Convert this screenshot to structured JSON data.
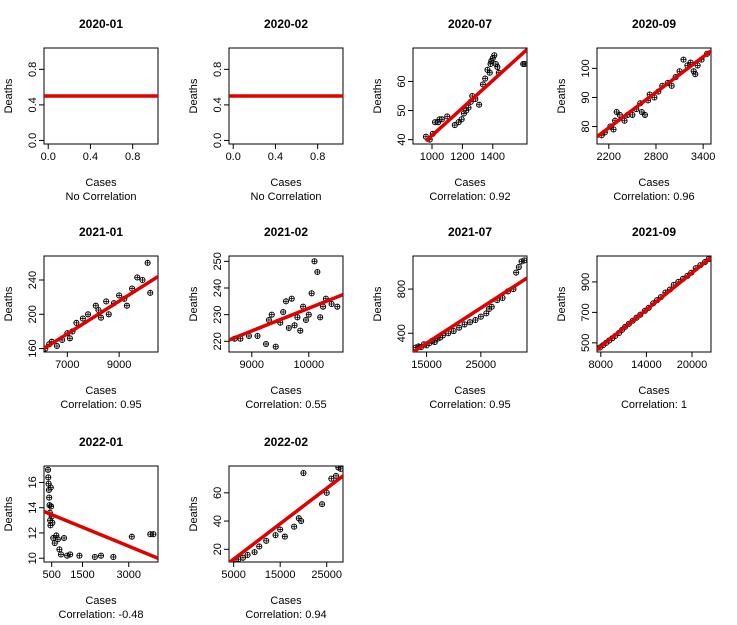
{
  "figure": {
    "background": "#ffffff",
    "point_color": "#000000",
    "line_color": "#e00000"
  },
  "chart_data": [
    {
      "type": "scatter",
      "title": "2020-01",
      "xlabel": "Cases",
      "ylabel": "Deaths",
      "subtitle": "No Correlation",
      "xlim": [
        -0.04,
        1.04
      ],
      "ylim": [
        -0.04,
        1.04
      ],
      "xticks": [
        0.0,
        0.4,
        0.8
      ],
      "xticklabels": [
        "0.0",
        "0.4",
        "0.8"
      ],
      "yticks": [
        0.0,
        0.4,
        0.8
      ],
      "yticklabels": [
        "0.0",
        "0.4",
        "0.8"
      ],
      "x": [],
      "y": [],
      "fit": {
        "x": [
          -0.04,
          1.04
        ],
        "y": [
          0.5,
          0.5
        ]
      }
    },
    {
      "type": "scatter",
      "title": "2020-02",
      "xlabel": "Cases",
      "ylabel": "Deaths",
      "subtitle": "No Correlation",
      "xlim": [
        -0.04,
        1.04
      ],
      "ylim": [
        -0.04,
        1.04
      ],
      "xticks": [
        0.0,
        0.4,
        0.8
      ],
      "xticklabels": [
        "0.0",
        "0.4",
        "0.8"
      ],
      "yticks": [
        0.0,
        0.4,
        0.8
      ],
      "yticklabels": [
        "0.0",
        "0.4",
        "0.8"
      ],
      "x": [],
      "y": [],
      "fit": {
        "x": [
          -0.04,
          1.04
        ],
        "y": [
          0.5,
          0.5
        ]
      }
    },
    {
      "type": "scatter",
      "title": "2020-07",
      "xlabel": "Cases",
      "ylabel": "Deaths",
      "subtitle": "Correlation:  0.92",
      "xlim": [
        875,
        1625
      ],
      "ylim": [
        38.5,
        71.5
      ],
      "xticks": [
        1000,
        1200,
        1400
      ],
      "xticklabels": [
        "1000",
        "1200",
        "1400"
      ],
      "yticks": [
        40,
        50,
        60
      ],
      "yticklabels": [
        "40",
        "50",
        "60"
      ],
      "x": [
        960,
        985,
        1005,
        1020,
        1040,
        1050,
        1065,
        1100,
        1150,
        1175,
        1195,
        1210,
        1225,
        1240,
        1255,
        1265,
        1285,
        1310,
        1335,
        1350,
        1365,
        1380,
        1385,
        1390,
        1400,
        1410,
        1420,
        1430,
        1440,
        1600,
        1610
      ],
      "y": [
        41,
        40,
        42,
        46,
        46,
        47,
        47,
        48,
        45,
        46,
        47,
        49,
        50,
        51,
        53,
        55,
        54,
        52,
        59,
        61,
        64,
        63,
        66,
        67,
        68,
        69,
        66,
        65,
        63,
        66,
        66
      ],
      "fit": {
        "x": [
          960,
          1625
        ],
        "y": [
          39.5,
          71.0
        ]
      }
    },
    {
      "type": "scatter",
      "title": "2020-09",
      "xlabel": "Cases",
      "ylabel": "Deaths",
      "subtitle": "Correlation:  0.96",
      "xlim": [
        2050,
        3500
      ],
      "ylim": [
        74,
        107
      ],
      "xticks": [
        2200,
        2800,
        3400
      ],
      "xticklabels": [
        "2200",
        "2800",
        "3400"
      ],
      "yticks": [
        80,
        90,
        100
      ],
      "yticklabels": [
        "80",
        "90",
        "100"
      ],
      "x": [
        2110,
        2150,
        2220,
        2260,
        2280,
        2300,
        2340,
        2400,
        2440,
        2500,
        2550,
        2600,
        2620,
        2660,
        2700,
        2720,
        2780,
        2830,
        2880,
        2950,
        3000,
        3050,
        3100,
        3150,
        3200,
        3240,
        3280,
        3300,
        3330,
        3380,
        3450
      ],
      "y": [
        77,
        78,
        80,
        79,
        82,
        85,
        84,
        82,
        84,
        84,
        86,
        88,
        85,
        84,
        89,
        91,
        90,
        92,
        94,
        95,
        94,
        97,
        99,
        103,
        101,
        102,
        99,
        98,
        101,
        103,
        105
      ],
      "fit": {
        "x": [
          2050,
          3500
        ],
        "y": [
          76.5,
          106.0
        ]
      }
    },
    {
      "type": "scatter",
      "title": "2021-01",
      "xlabel": "Cases",
      "ylabel": "Deaths",
      "subtitle": "Correlation:  0.95",
      "xlim": [
        6100,
        10500
      ],
      "ylim": [
        156,
        268
      ],
      "xticks": [
        7000,
        9000
      ],
      "xticklabels": [
        "7000",
        "9000"
      ],
      "yticks": [
        160,
        200,
        240
      ],
      "yticklabels": [
        "160",
        "200",
        "240"
      ],
      "x": [
        6150,
        6300,
        6400,
        6600,
        6800,
        7000,
        7100,
        7200,
        7350,
        7600,
        7800,
        8100,
        8200,
        8300,
        8500,
        8600,
        8800,
        9000,
        9200,
        9300,
        9500,
        9700,
        9900,
        10100,
        10200
      ],
      "y": [
        160,
        165,
        168,
        163,
        170,
        178,
        172,
        180,
        190,
        195,
        200,
        210,
        205,
        196,
        215,
        200,
        213,
        222,
        218,
        210,
        230,
        243,
        240,
        260,
        225
      ],
      "fit": {
        "x": [
          6100,
          10500
        ],
        "y": [
          160.0,
          244.0
        ]
      }
    },
    {
      "type": "scatter",
      "title": "2021-02",
      "xlabel": "Cases",
      "ylabel": "Deaths",
      "subtitle": "Correlation:  0.55",
      "xlim": [
        8600,
        10600
      ],
      "ylim": [
        216,
        252
      ],
      "xticks": [
        9000,
        10000
      ],
      "xticklabels": [
        "9000",
        "10000"
      ],
      "yticks": [
        220,
        230,
        240,
        250
      ],
      "yticklabels": [
        "220",
        "230",
        "240",
        "250"
      ],
      "x": [
        8700,
        8800,
        8950,
        9100,
        9250,
        9300,
        9350,
        9420,
        9500,
        9550,
        9600,
        9650,
        9700,
        9750,
        9800,
        9850,
        9900,
        9950,
        10000,
        10050,
        10100,
        10150,
        10200,
        10250,
        10300,
        10400,
        10500
      ],
      "y": [
        221,
        221,
        222,
        222,
        219,
        228,
        230,
        218,
        227,
        231,
        235,
        225,
        236,
        226,
        229,
        224,
        233,
        228,
        230,
        238,
        250,
        246,
        229,
        233,
        236,
        234,
        233
      ],
      "fit": {
        "x": [
          8600,
          10600
        ],
        "y": [
          220.5,
          237.5
        ]
      }
    },
    {
      "type": "scatter",
      "title": "2021-07",
      "xlabel": "Cases",
      "ylabel": "Deaths",
      "subtitle": "Correlation:  0.95",
      "xlim": [
        12500,
        33500
      ],
      "ylim": [
        230,
        1100
      ],
      "xticks": [
        15000,
        25000
      ],
      "xticklabels": [
        "15000",
        "25000"
      ],
      "yticks": [
        400,
        800
      ],
      "yticklabels": [
        "400",
        "800"
      ],
      "x": [
        13000,
        13500,
        14000,
        14500,
        15000,
        15500,
        16000,
        16500,
        17000,
        17500,
        18000,
        19000,
        20000,
        21000,
        22000,
        23000,
        24000,
        25000,
        26000,
        26500,
        27000,
        28000,
        29000,
        30000,
        31000,
        31500,
        32000,
        32500,
        33000
      ],
      "y": [
        270,
        280,
        275,
        300,
        290,
        310,
        330,
        320,
        350,
        360,
        380,
        400,
        420,
        450,
        480,
        500,
        520,
        550,
        580,
        620,
        640,
        700,
        720,
        780,
        800,
        950,
        1000,
        1050,
        1060
      ],
      "fit": {
        "x": [
          12500,
          33500
        ],
        "y": [
          230.0,
          900.0
        ]
      }
    },
    {
      "type": "scatter",
      "title": "2021-09",
      "xlabel": "Cases",
      "ylabel": "Deaths",
      "subtitle": "Correlation:  1",
      "xlim": [
        7500,
        22500
      ],
      "ylim": [
        440,
        1070
      ],
      "xticks": [
        8000,
        14000,
        20000
      ],
      "xticklabels": [
        "8000",
        "14000",
        "20000"
      ],
      "yticks": [
        500,
        700,
        900
      ],
      "yticklabels": [
        "500",
        "700",
        "900"
      ],
      "x": [
        7900,
        8300,
        8700,
        9100,
        9500,
        9900,
        10400,
        10800,
        11200,
        11700,
        12200,
        12700,
        13200,
        13800,
        14300,
        14900,
        15400,
        15900,
        16500,
        17100,
        17600,
        18200,
        18800,
        19400,
        19900,
        20500,
        21100,
        21700,
        22200
      ],
      "y": [
        470,
        485,
        500,
        515,
        530,
        545,
        565,
        585,
        605,
        625,
        645,
        665,
        685,
        710,
        730,
        760,
        780,
        800,
        830,
        850,
        880,
        900,
        920,
        940,
        960,
        990,
        1010,
        1030,
        1050
      ],
      "fit": {
        "x": [
          7500,
          22500
        ],
        "y": [
          455.0,
          1060.0
        ]
      }
    },
    {
      "type": "scatter",
      "title": "2022-01",
      "xlabel": "Cases",
      "ylabel": "Deaths",
      "subtitle": "Correlation:  -0.48",
      "xlim": [
        250,
        3950
      ],
      "ylim": [
        9.7,
        17.3
      ],
      "xticks": [
        500,
        1500,
        3000
      ],
      "xticklabels": [
        "500",
        "1500",
        "3000"
      ],
      "yticks": [
        10,
        12,
        14,
        16
      ],
      "yticklabels": [
        "10",
        "12",
        "14",
        "16"
      ],
      "x": [
        380,
        390,
        400,
        410,
        420,
        430,
        440,
        450,
        460,
        470,
        480,
        500,
        520,
        550,
        600,
        650,
        700,
        750,
        800,
        900,
        1000,
        1100,
        1400,
        1900,
        2100,
        2500,
        3100,
        3700,
        3800
      ],
      "y": [
        17.0,
        16.4,
        15.9,
        15.4,
        14.8,
        14.2,
        13.6,
        13.0,
        12.6,
        15.6,
        14.1,
        13.3,
        12.8,
        11.6,
        11.2,
        11.8,
        11.5,
        10.7,
        10.3,
        11.6,
        10.2,
        10.3,
        10.2,
        10.1,
        10.2,
        10.1,
        11.7,
        11.9,
        11.9
      ],
      "fit": {
        "x": [
          250,
          3950
        ],
        "y": [
          13.7,
          10.0
        ]
      }
    },
    {
      "type": "scatter",
      "title": "2022-02",
      "xlabel": "Cases",
      "ylabel": "Deaths",
      "subtitle": "Correlation:  0.94",
      "xlim": [
        4000,
        28500
      ],
      "ylim": [
        11,
        79
      ],
      "xticks": [
        5000,
        15000,
        25000
      ],
      "xticklabels": [
        "5000",
        "15000",
        "25000"
      ],
      "yticks": [
        20,
        40,
        60
      ],
      "yticklabels": [
        "20",
        "40",
        "60"
      ],
      "x": [
        5500,
        6000,
        7000,
        8000,
        9500,
        10500,
        12000,
        14000,
        15000,
        16000,
        18000,
        19000,
        19500,
        20000,
        24000,
        25000,
        26000,
        27000,
        27500,
        28000
      ],
      "y": [
        13,
        13,
        14,
        16,
        18,
        22,
        26,
        30,
        34,
        29,
        36,
        42,
        40,
        74,
        52,
        60,
        70,
        72,
        78,
        77
      ],
      "fit": {
        "x": [
          4000,
          28500
        ],
        "y": [
          10.5,
          72.0
        ]
      }
    }
  ]
}
